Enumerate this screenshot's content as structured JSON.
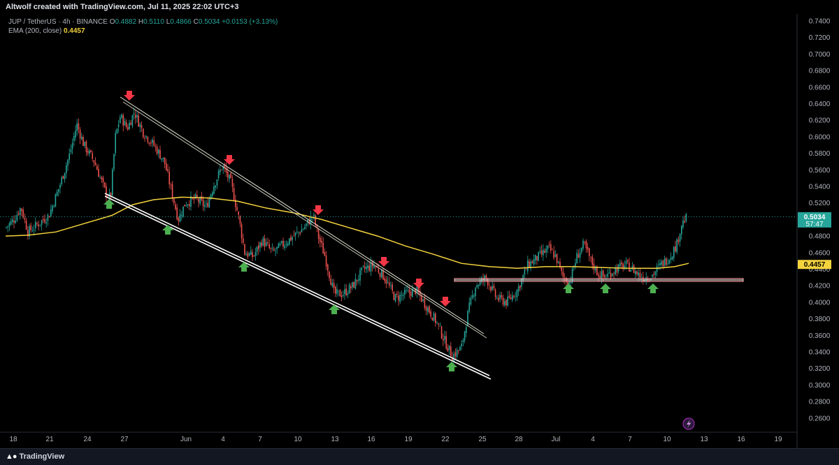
{
  "header": {
    "attribution": "Altwolf created with TradingView.com, Jul 11, 2025 22:02 UTC+3",
    "symbol": "JUP / TetherUS · 4h · BINANCE",
    "ohlc": {
      "o_label": "O",
      "o": "0.4882",
      "h_label": "H",
      "h": "0.5110",
      "l_label": "L",
      "l": "0.4866",
      "c_label": "C",
      "c": "0.5034",
      "change": "+0.0153 (+3.13%)"
    },
    "ema_label": "EMA (200, close)",
    "ema_value": "0.4457"
  },
  "price_axis": {
    "labels": [
      "0.7400",
      "0.7200",
      "0.7000",
      "0.6800",
      "0.6600",
      "0.6400",
      "0.6200",
      "0.6000",
      "0.5800",
      "0.5600",
      "0.5400",
      "0.5200",
      "0.5000",
      "0.4800",
      "0.4600",
      "0.4400",
      "0.4200",
      "0.4000",
      "0.3800",
      "0.3600",
      "0.3400",
      "0.3200",
      "0.3000",
      "0.2800",
      "0.2600"
    ],
    "current_price": "0.5034",
    "countdown": "57:47",
    "ema_tag": "0.4457"
  },
  "time_axis": {
    "labels": [
      "18",
      "21",
      "24",
      "27",
      "Jun",
      "4",
      "7",
      "10",
      "13",
      "16",
      "19",
      "22",
      "25",
      "28",
      "Jul",
      "4",
      "7",
      "10",
      "13",
      "16",
      "19"
    ]
  },
  "colors": {
    "up": "#26a69a",
    "down": "#ef5350",
    "ema": "#f5d33d",
    "arrow_up": "#4caf50",
    "arrow_down": "#f23645",
    "channel": "#ffffff",
    "support": "#ef9a9a"
  },
  "chart_data": {
    "type": "candlestick",
    "ema_period": 200,
    "ylim": [
      0.25,
      0.745
    ],
    "channel_upper": [
      [
        "May 27",
        0.645
      ],
      [
        "Jun 24",
        0.358
      ]
    ],
    "channel_lower": [
      [
        "May 25",
        0.53
      ],
      [
        "Jun 24",
        0.308
      ]
    ],
    "support_line": {
      "value": 0.428,
      "from": "Jun 23",
      "to": "Jul 15"
    },
    "sell_arrows": [
      "May 27",
      "Jun 3",
      "Jun 11",
      "Jun 17",
      "Jun 20",
      "Jun 22"
    ],
    "buy_arrows": [
      "May 25",
      "May 30",
      "Jun 5",
      "Jun 13",
      "Jun 22",
      "Jul 2",
      "Jul 5",
      "Jul 8"
    ]
  },
  "footer": {
    "brand": "TradingView",
    "logo_icon": "tradingview-logo-icon",
    "lightning_icon": "lightning-icon"
  }
}
